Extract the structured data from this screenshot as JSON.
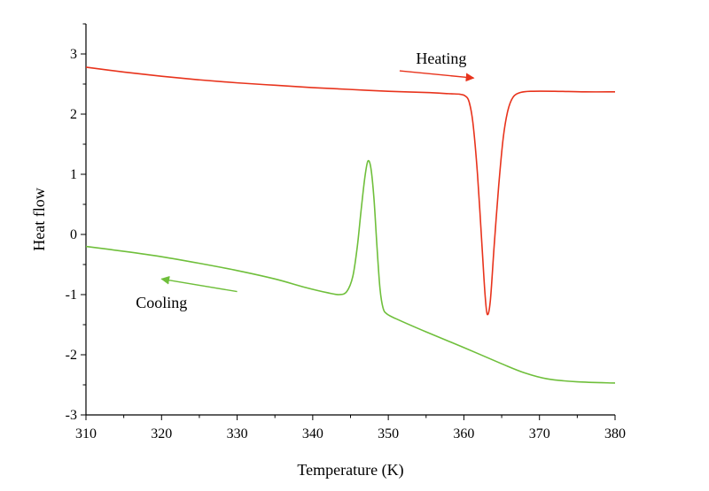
{
  "chart_data": {
    "type": "line",
    "title": "",
    "xlabel": "Temperature (K)",
    "ylabel": "Heat flow",
    "xlim": [
      310,
      380
    ],
    "ylim": [
      -3,
      3.5
    ],
    "x_ticks": [
      310,
      320,
      330,
      340,
      350,
      360,
      370,
      380
    ],
    "y_ticks": [
      -3,
      -2,
      -1,
      0,
      1,
      2,
      3
    ],
    "grid": false,
    "legend": "none",
    "series": [
      {
        "color": "#e8331c",
        "points": [
          [
            310,
            2.78
          ],
          [
            315,
            2.7
          ],
          [
            320,
            2.63
          ],
          [
            325,
            2.57
          ],
          [
            330,
            2.52
          ],
          [
            335,
            2.48
          ],
          [
            340,
            2.44
          ],
          [
            345,
            2.41
          ],
          [
            350,
            2.38
          ],
          [
            355,
            2.36
          ],
          [
            358,
            2.34
          ],
          [
            359.5,
            2.33
          ],
          [
            360.2,
            2.3
          ],
          [
            360.7,
            2.2
          ],
          [
            361.2,
            1.85
          ],
          [
            361.8,
            1.0
          ],
          [
            362.4,
            -0.2
          ],
          [
            362.8,
            -1.0
          ],
          [
            363.1,
            -1.33
          ],
          [
            363.5,
            -1.1
          ],
          [
            364.0,
            -0.2
          ],
          [
            364.6,
            0.8
          ],
          [
            365.2,
            1.6
          ],
          [
            365.8,
            2.05
          ],
          [
            366.5,
            2.28
          ],
          [
            367.5,
            2.36
          ],
          [
            369,
            2.38
          ],
          [
            372,
            2.38
          ],
          [
            376,
            2.37
          ],
          [
            380,
            2.37
          ]
        ]
      },
      {
        "color": "#6fbf3b",
        "points": [
          [
            310,
            -0.2
          ],
          [
            315,
            -0.28
          ],
          [
            320,
            -0.37
          ],
          [
            325,
            -0.48
          ],
          [
            330,
            -0.6
          ],
          [
            335,
            -0.74
          ],
          [
            339,
            -0.88
          ],
          [
            342,
            -0.97
          ],
          [
            343.5,
            -1.0
          ],
          [
            344.5,
            -0.95
          ],
          [
            345.3,
            -0.7
          ],
          [
            345.9,
            -0.2
          ],
          [
            346.4,
            0.4
          ],
          [
            346.9,
            0.95
          ],
          [
            347.3,
            1.22
          ],
          [
            347.7,
            1.1
          ],
          [
            348.1,
            0.6
          ],
          [
            348.5,
            -0.2
          ],
          [
            348.9,
            -0.9
          ],
          [
            349.3,
            -1.22
          ],
          [
            349.8,
            -1.32
          ],
          [
            351,
            -1.4
          ],
          [
            355,
            -1.62
          ],
          [
            360,
            -1.88
          ],
          [
            365,
            -2.15
          ],
          [
            368,
            -2.3
          ],
          [
            371,
            -2.4
          ],
          [
            375,
            -2.45
          ],
          [
            380,
            -2.47
          ]
        ]
      }
    ],
    "annotations": [
      {
        "text": "Heating",
        "x": 357,
        "y": 2.93,
        "color": "#e8331c",
        "arrow": {
          "from": [
            351.5,
            2.72
          ],
          "to": [
            361.3,
            2.6
          ]
        }
      },
      {
        "text": "Cooling",
        "x": 320,
        "y": -1.13,
        "color": "#6fbf3b",
        "arrow": {
          "from": [
            330,
            -0.95
          ],
          "to": [
            320,
            -0.74
          ]
        }
      }
    ]
  }
}
